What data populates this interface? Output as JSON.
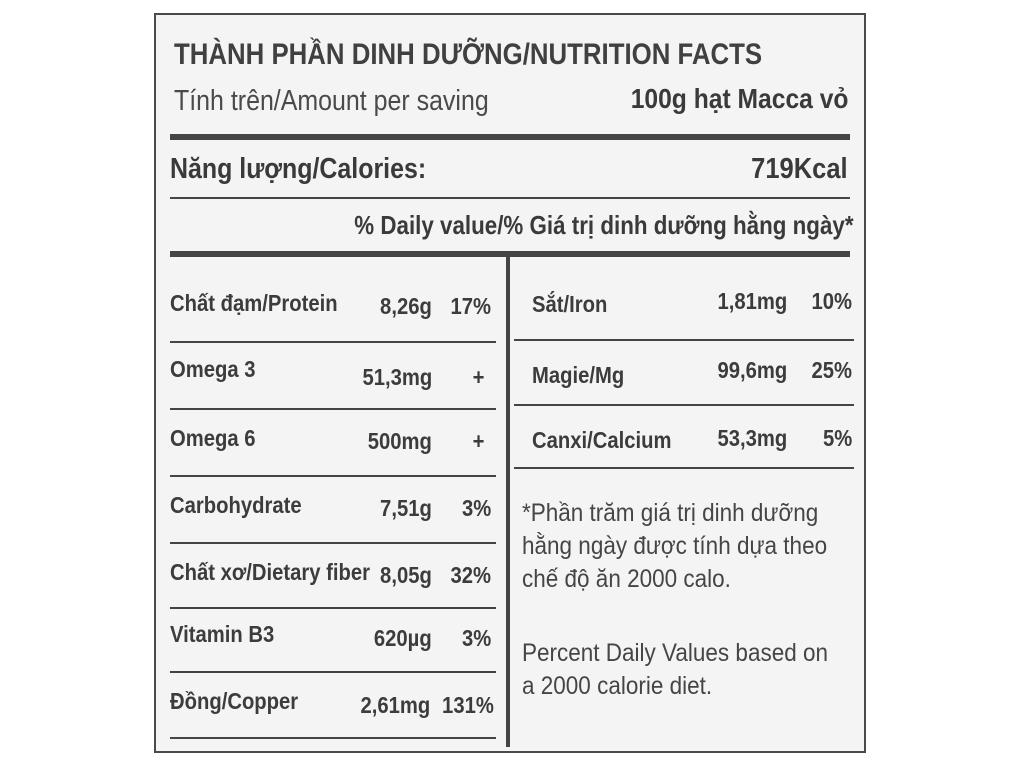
{
  "header": {
    "title": "THÀNH PHẦN DINH DƯỠNG/NUTRITION FACTS",
    "serving_label": "Tính trên/Amount per saving",
    "serving_value": "100g hạt Macca vỏ"
  },
  "calories": {
    "label": "Năng lượng/Calories:",
    "value": "719Kcal"
  },
  "daily_value_header": "% Daily value/% Giá trị dinh dưỡng hằng ngày*",
  "left_rows": [
    {
      "name": "Chất đạm/Protein",
      "amount": "8,26g",
      "dv": "17%"
    },
    {
      "name": "Omega 3",
      "amount": "51,3mg",
      "dv": "+"
    },
    {
      "name": "Omega 6",
      "amount": "500mg",
      "dv": "+"
    },
    {
      "name": "Carbohydrate",
      "amount": "7,51g",
      "dv": "3%"
    },
    {
      "name": "Chất xơ/Dietary fiber",
      "amount": "8,05g",
      "dv": "32%"
    },
    {
      "name": "Vitamin B3",
      "amount": "620µg",
      "dv": "3%"
    },
    {
      "name": "Đồng/Copper",
      "amount": "2,61mg",
      "dv": "131%"
    }
  ],
  "right_rows": [
    {
      "name": "Sắt/Iron",
      "amount": "1,81mg",
      "dv": "10%"
    },
    {
      "name": "Magie/Mg",
      "amount": "99,6mg",
      "dv": "25%"
    },
    {
      "name": "Canxi/Calcium",
      "amount": "53,3mg",
      "dv": "5%"
    }
  ],
  "footnote_vi": [
    "*Phần trăm giá trị dinh dưỡng",
    "hằng ngày được tính dựa theo",
    "chế độ ăn 2000 calo."
  ],
  "footnote_en": [
    "Percent Daily Values based on",
    "a 2000 calorie diet."
  ]
}
